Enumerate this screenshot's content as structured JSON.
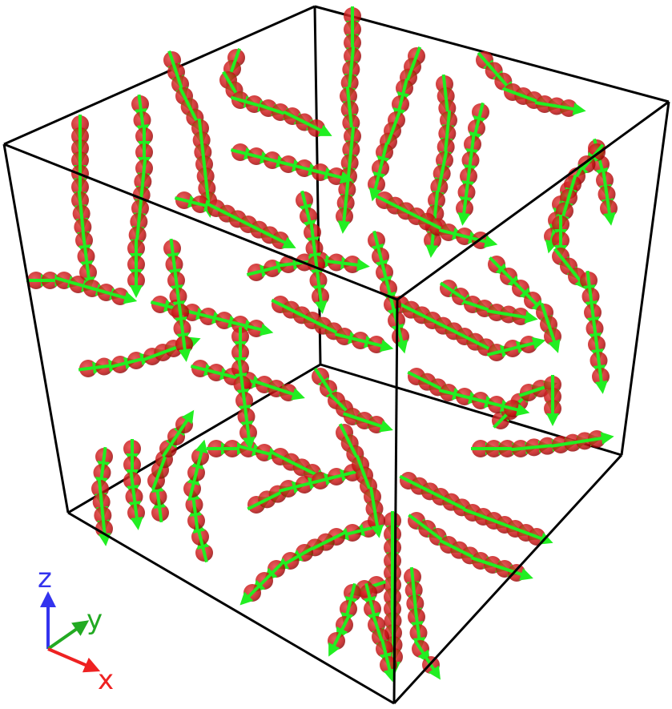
{
  "render": {
    "background": "#ffffff",
    "box_color": "#000000",
    "particle_color": "#cc1111",
    "particle_edge": "#7a0606",
    "dipole_color": "#22ee22"
  },
  "axes_triad": {
    "z_label": "z",
    "y_label": "y",
    "x_label": "x",
    "z_color": "#3333ee",
    "y_color": "#22aa22",
    "x_color": "#ee2222"
  }
}
